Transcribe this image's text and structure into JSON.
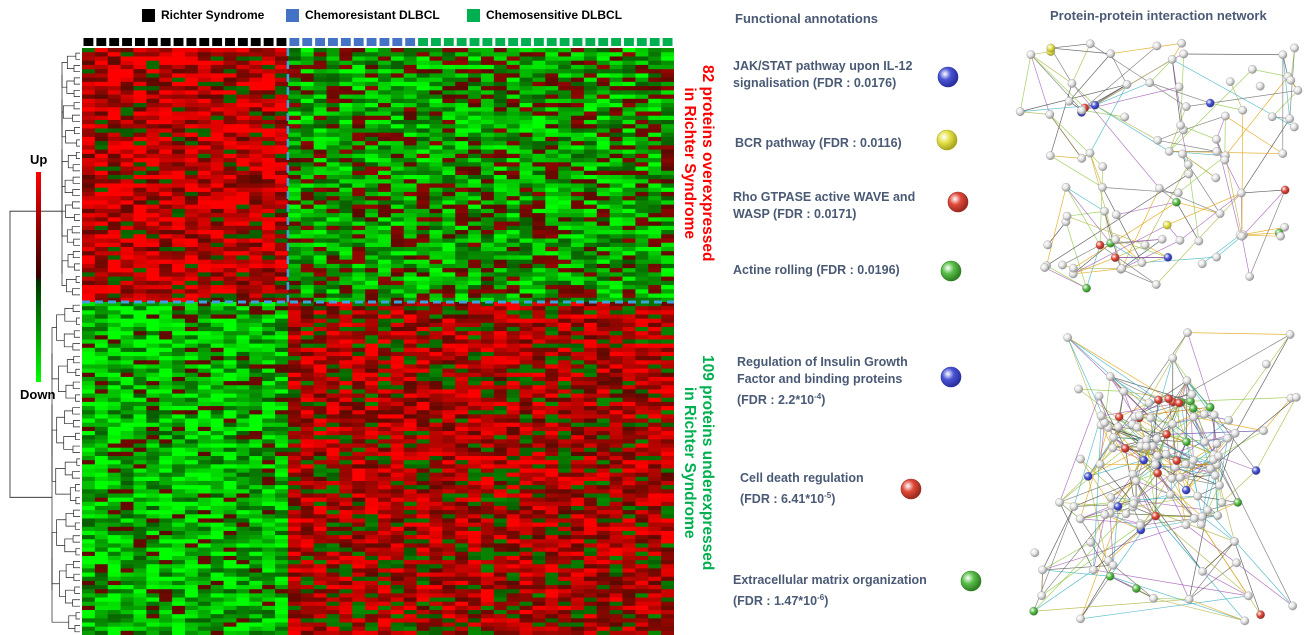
{
  "legend": [
    {
      "label": "Richter Syndrome",
      "color": "#000000"
    },
    {
      "label": "Chemoresistant DLBCL",
      "color": "#4472c4"
    },
    {
      "label": "Chemosensitive DLBCL",
      "color": "#00b050"
    }
  ],
  "color_scale": {
    "up_label": "Up",
    "down_label": "Down",
    "up_color": "#ff0000",
    "down_color": "#00ff00"
  },
  "group_labels": {
    "over": {
      "line1": "82 proteins overexpressed",
      "line2": "in Richter Syndrome",
      "color": "#ff0000"
    },
    "under": {
      "line1": "109 proteins underexpressed",
      "line2": "in Richter Syndrome",
      "color": "#00b050"
    }
  },
  "headings": {
    "annotations": "Functional annotations",
    "network": "Protein-protein interaction network"
  },
  "annotations_top": [
    {
      "text": "JAK/STAT pathway upon IL-12 signalisation  (FDR : 0.0176)",
      "node_color": "blue"
    },
    {
      "text": "BCR pathway (FDR : 0.0116)",
      "node_color": "yellow"
    },
    {
      "text": "Rho GTPASE active WAVE and WASP (FDR : 0.0171)",
      "node_color": "red"
    },
    {
      "text": "Actine rolling (FDR : 0.0196)",
      "node_color": "green"
    }
  ],
  "annotations_bottom": [
    {
      "line1": "Regulation of Insulin Growth",
      "line2": "Factor and binding proteins",
      "line3": "(FDR : 2.2*10",
      "exp": "-4",
      "close": ")",
      "node_color": "blue"
    },
    {
      "line1": "Cell death regulation",
      "line2": "",
      "line3": "(FDR : 6.41*10",
      "exp": "-5",
      "close": ")",
      "node_color": "red"
    },
    {
      "line1": "Extracellular matrix organization",
      "line2": "",
      "line3": "(FDR : 1.47*10",
      "exp": "-6",
      "close": ")",
      "node_color": "green"
    }
  ],
  "heatmap": {
    "groups": [
      {
        "name": "Richter Syndrome",
        "samples": 15
      },
      {
        "name": "Chemoresistant DLBCL",
        "samples": 9
      },
      {
        "name": "Chemosensitive DLBCL",
        "samples": 19
      }
    ],
    "proteins_over": 82,
    "proteins_under": 109
  }
}
